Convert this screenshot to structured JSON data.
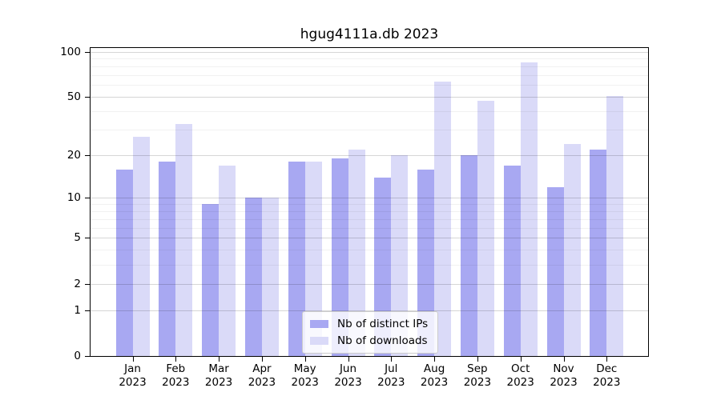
{
  "chart_data": {
    "type": "bar",
    "title": "hgug4111a.db 2023",
    "categories": [
      "Jan",
      "Feb",
      "Mar",
      "Apr",
      "May",
      "Jun",
      "Jul",
      "Aug",
      "Sep",
      "Oct",
      "Nov",
      "Dec"
    ],
    "category_year": "2023",
    "series": [
      {
        "name": "Nb of distinct IPs",
        "color": "#a8a8f2",
        "values": [
          16,
          18,
          9,
          10,
          18,
          19,
          14,
          16,
          20,
          17,
          12,
          22
        ]
      },
      {
        "name": "Nb of downloads",
        "color": "#dadaf8",
        "values": [
          27,
          33,
          17,
          10,
          18,
          22,
          20,
          63,
          47,
          85,
          24,
          51
        ]
      }
    ],
    "xlabel": "",
    "ylabel": "",
    "yscale": "log1p",
    "ylim": [
      0,
      106
    ],
    "y_ticks": [
      0,
      1,
      2,
      5,
      10,
      20,
      50,
      100
    ],
    "minor_gridlines": [
      3,
      4,
      6,
      7,
      8,
      9,
      30,
      40,
      60,
      70,
      80,
      90
    ],
    "grid": true,
    "legend_position": "bottom-center"
  }
}
